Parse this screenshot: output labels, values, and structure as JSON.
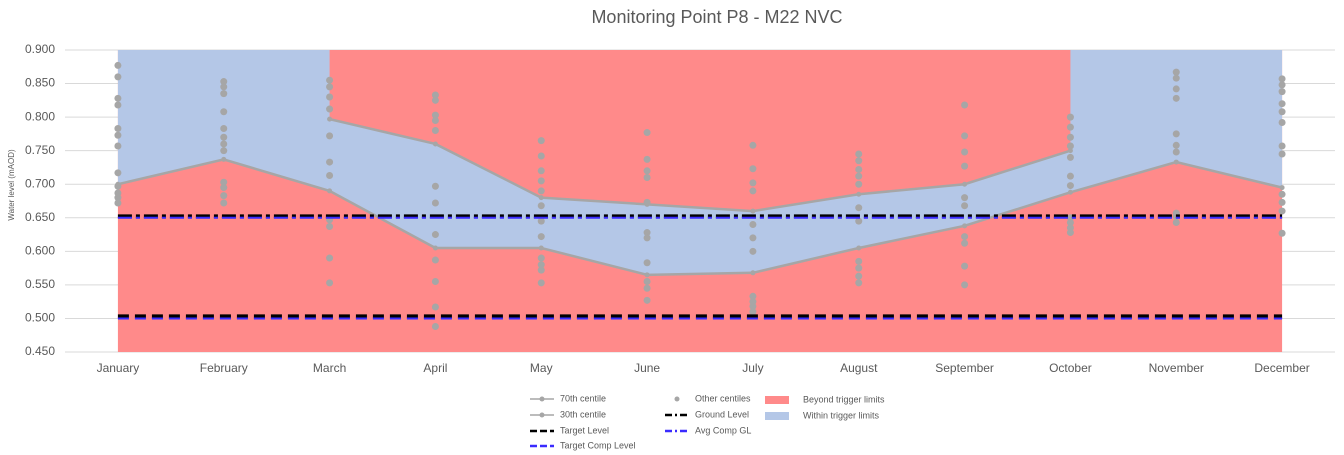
{
  "chart_data": {
    "type": "line",
    "title": "Monitoring Point P8 - M22 NVC",
    "y_label": "Water level (mAOD)",
    "categories": [
      "January",
      "February",
      "March",
      "April",
      "May",
      "June",
      "July",
      "August",
      "September",
      "October",
      "November",
      "December"
    ],
    "ylim": [
      0.45,
      0.9
    ],
    "yticks": [
      {
        "value": 0.45,
        "label": "0.450"
      },
      {
        "value": 0.5,
        "label": "0.500"
      },
      {
        "value": 0.55,
        "label": "0.550"
      },
      {
        "value": 0.6,
        "label": "0.600"
      },
      {
        "value": 0.65,
        "label": "0.650"
      },
      {
        "value": 0.7,
        "label": "0.700"
      },
      {
        "value": 0.75,
        "label": "0.750"
      },
      {
        "value": 0.8,
        "label": "0.800"
      },
      {
        "value": 0.85,
        "label": "0.850"
      },
      {
        "value": 0.9,
        "label": "0.900"
      }
    ],
    "grid": true,
    "areas": [
      {
        "name": "Beyond trigger limits",
        "color": "#ff8a8a"
      },
      {
        "name": "Within trigger limits",
        "color": "#b4c7e7"
      }
    ],
    "series": [
      {
        "name": "70th centile",
        "color": "#a6a6a6",
        "style": "line-marker",
        "values": [
          null,
          null,
          0.797,
          0.76,
          0.68,
          0.67,
          0.66,
          0.685,
          0.7,
          0.75,
          null,
          null
        ]
      },
      {
        "name": "30th centile",
        "color": "#a6a6a6",
        "style": "line-marker",
        "values": [
          0.7,
          0.737,
          0.69,
          0.605,
          0.605,
          0.565,
          0.568,
          0.605,
          0.638,
          0.688,
          0.733,
          0.695
        ]
      },
      {
        "name": "Other centiles",
        "color": "#a6a6a6",
        "style": "markers",
        "values": [
          [
            0.877,
            0.86,
            0.828,
            0.818,
            0.783,
            0.773,
            0.757,
            0.717,
            0.697,
            0.687,
            0.68,
            0.672
          ],
          [
            0.853,
            0.845,
            0.835,
            0.808,
            0.783,
            0.77,
            0.76,
            0.75,
            0.703,
            0.695,
            0.683,
            0.672
          ],
          [
            0.855,
            0.845,
            0.83,
            0.812,
            0.772,
            0.733,
            0.713,
            0.647,
            0.637,
            0.59,
            0.553
          ],
          [
            0.833,
            0.825,
            0.803,
            0.795,
            0.78,
            0.697,
            0.672,
            0.625,
            0.587,
            0.555,
            0.517,
            0.488
          ],
          [
            0.765,
            0.742,
            0.72,
            0.705,
            0.69,
            0.668,
            0.645,
            0.622,
            0.59,
            0.58,
            0.572,
            0.553
          ],
          [
            0.777,
            0.737,
            0.72,
            0.71,
            0.673,
            0.628,
            0.62,
            0.583,
            0.555,
            0.545,
            0.527
          ],
          [
            0.758,
            0.723,
            0.702,
            0.69,
            0.64,
            0.62,
            0.6,
            0.533,
            0.525,
            0.518,
            0.51
          ],
          [
            0.745,
            0.735,
            0.722,
            0.712,
            0.7,
            0.665,
            0.645,
            0.585,
            0.575,
            0.563,
            0.553
          ],
          [
            0.818,
            0.772,
            0.748,
            0.727,
            0.68,
            0.668,
            0.622,
            0.612,
            0.578,
            0.55
          ],
          [
            0.8,
            0.785,
            0.77,
            0.757,
            0.74,
            0.712,
            0.698,
            0.65,
            0.643,
            0.635,
            0.628
          ],
          [
            0.867,
            0.858,
            0.842,
            0.828,
            0.775,
            0.758,
            0.748,
            0.657,
            0.652,
            0.643
          ],
          [
            0.857,
            0.848,
            0.838,
            0.82,
            0.808,
            0.792,
            0.757,
            0.745,
            0.685,
            0.673,
            0.66,
            0.627
          ]
        ]
      },
      {
        "name": "Ground Level",
        "color": "#000000",
        "style": "dash-dot",
        "values": [
          0.652,
          0.652,
          0.652,
          0.652,
          0.652,
          0.652,
          0.652,
          0.652,
          0.652,
          0.652,
          0.652,
          0.652
        ]
      },
      {
        "name": "Avg Comp GL",
        "color": "#3a2bff",
        "style": "dash-dot",
        "values": [
          0.65,
          0.65,
          0.65,
          0.65,
          0.65,
          0.65,
          0.65,
          0.65,
          0.65,
          0.65,
          0.65,
          0.65
        ]
      },
      {
        "name": "Target Level",
        "color": "#000000",
        "style": "dash",
        "values": [
          0.503,
          0.503,
          0.503,
          0.503,
          0.503,
          0.503,
          0.503,
          0.503,
          0.503,
          0.503,
          0.503,
          0.503
        ]
      },
      {
        "name": "Target Comp Level",
        "color": "#3a2bff",
        "style": "dash",
        "values": [
          0.5,
          0.5,
          0.5,
          0.5,
          0.5,
          0.5,
          0.5,
          0.5,
          0.5,
          0.5,
          0.5,
          0.5
        ]
      }
    ]
  }
}
